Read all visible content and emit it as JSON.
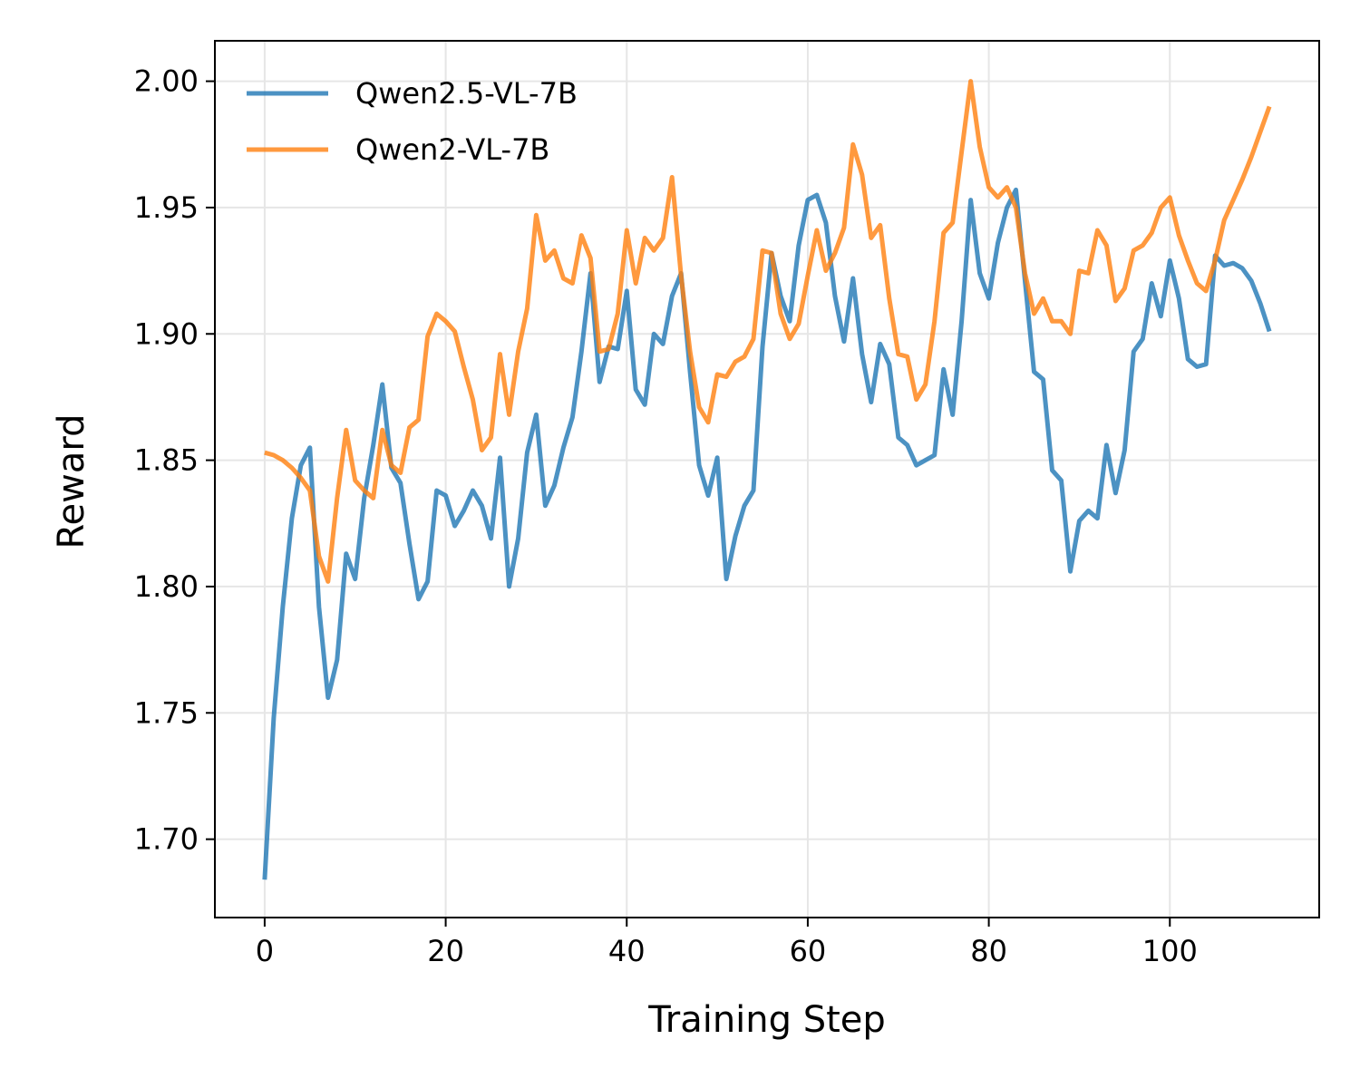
{
  "chart_data": {
    "type": "line",
    "title": "",
    "xlabel": "Training Step",
    "ylabel": "Reward",
    "xlim": [
      -5.5,
      116.5
    ],
    "ylim": [
      1.669,
      2.016
    ],
    "xticks": [
      0,
      20,
      40,
      60,
      80,
      100
    ],
    "xtick_labels": [
      "0",
      "20",
      "40",
      "60",
      "80",
      "100"
    ],
    "yticks": [
      1.7,
      1.75,
      1.8,
      1.85,
      1.9,
      1.95,
      2.0
    ],
    "ytick_labels": [
      "1.70",
      "1.75",
      "1.80",
      "1.85",
      "1.90",
      "1.95",
      "2.00"
    ],
    "grid": true,
    "legend_position": "top-left",
    "series": [
      {
        "name": "Qwen2.5-VL-7B",
        "color": "#1f77b4",
        "values": [
          1.684,
          1.748,
          1.792,
          1.827,
          1.848,
          1.855,
          1.792,
          1.756,
          1.771,
          1.813,
          1.803,
          1.835,
          1.856,
          1.88,
          1.847,
          1.841,
          1.817,
          1.795,
          1.802,
          1.838,
          1.836,
          1.824,
          1.83,
          1.838,
          1.832,
          1.819,
          1.851,
          1.8,
          1.819,
          1.853,
          1.868,
          1.832,
          1.84,
          1.855,
          1.867,
          1.893,
          1.924,
          1.881,
          1.895,
          1.894,
          1.917,
          1.878,
          1.872,
          1.9,
          1.896,
          1.915,
          1.924,
          1.885,
          1.848,
          1.836,
          1.851,
          1.803,
          1.82,
          1.832,
          1.838,
          1.895,
          1.932,
          1.915,
          1.905,
          1.935,
          1.953,
          1.955,
          1.944,
          1.915,
          1.897,
          1.922,
          1.892,
          1.873,
          1.896,
          1.888,
          1.859,
          1.856,
          1.848,
          1.85,
          1.852,
          1.886,
          1.868,
          1.905,
          1.953,
          1.924,
          1.914,
          1.936,
          1.95,
          1.957,
          1.921,
          1.885,
          1.882,
          1.846,
          1.842,
          1.806,
          1.826,
          1.83,
          1.827,
          1.856,
          1.837,
          1.854,
          1.893,
          1.898,
          1.92,
          1.907,
          1.929,
          1.914,
          1.89,
          1.887,
          1.888,
          1.931,
          1.927,
          1.928,
          1.926,
          1.921,
          1.912,
          1.901
        ]
      },
      {
        "name": "Qwen2-VL-7B",
        "color": "#ff7f0e",
        "values": [
          1.853,
          1.852,
          1.85,
          1.847,
          1.843,
          1.838,
          1.812,
          1.802,
          1.835,
          1.862,
          1.842,
          1.838,
          1.835,
          1.862,
          1.848,
          1.845,
          1.863,
          1.866,
          1.899,
          1.908,
          1.905,
          1.901,
          1.887,
          1.874,
          1.854,
          1.859,
          1.892,
          1.868,
          1.893,
          1.91,
          1.947,
          1.929,
          1.933,
          1.922,
          1.92,
          1.939,
          1.93,
          1.893,
          1.894,
          1.908,
          1.941,
          1.92,
          1.938,
          1.933,
          1.938,
          1.962,
          1.923,
          1.893,
          1.871,
          1.865,
          1.884,
          1.883,
          1.889,
          1.891,
          1.898,
          1.933,
          1.932,
          1.908,
          1.898,
          1.904,
          1.923,
          1.941,
          1.925,
          1.932,
          1.942,
          1.975,
          1.963,
          1.938,
          1.943,
          1.914,
          1.892,
          1.891,
          1.874,
          1.88,
          1.905,
          1.94,
          1.944,
          1.972,
          2.0,
          1.974,
          1.958,
          1.954,
          1.958,
          1.95,
          1.924,
          1.908,
          1.914,
          1.905,
          1.905,
          1.9,
          1.925,
          1.924,
          1.941,
          1.935,
          1.913,
          1.918,
          1.933,
          1.935,
          1.94,
          1.95,
          1.954,
          1.939,
          1.929,
          1.92,
          1.917,
          1.929,
          1.945,
          1.953,
          1.961,
          1.97,
          1.98,
          1.99
        ]
      }
    ]
  }
}
